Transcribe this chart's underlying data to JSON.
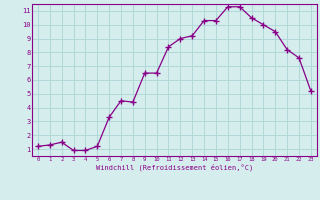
{
  "x": [
    0,
    1,
    2,
    3,
    4,
    5,
    6,
    7,
    8,
    9,
    10,
    11,
    12,
    13,
    14,
    15,
    16,
    17,
    18,
    19,
    20,
    21,
    22,
    23
  ],
  "y": [
    1.2,
    1.3,
    1.5,
    0.9,
    0.9,
    1.2,
    3.3,
    4.5,
    4.4,
    6.5,
    6.5,
    8.4,
    9.0,
    9.2,
    10.3,
    10.3,
    11.3,
    11.3,
    10.5,
    10.0,
    9.5,
    8.2,
    7.6,
    5.2
  ],
  "xlabel": "Windchill (Refroidissement éolien,°C)",
  "ylim": [
    0.5,
    11.5
  ],
  "xlim": [
    -0.5,
    23.5
  ],
  "yticks": [
    1,
    2,
    3,
    4,
    5,
    6,
    7,
    8,
    9,
    10,
    11
  ],
  "xticks": [
    0,
    1,
    2,
    3,
    4,
    5,
    6,
    7,
    8,
    9,
    10,
    11,
    12,
    13,
    14,
    15,
    16,
    17,
    18,
    19,
    20,
    21,
    22,
    23
  ],
  "line_color": "#880088",
  "marker_color": "#880088",
  "bg_color": "#d5eeed",
  "grid_color": "#b0d8d8",
  "xlabel_color": "#880088",
  "tick_color": "#880088",
  "spine_color": "#880088"
}
